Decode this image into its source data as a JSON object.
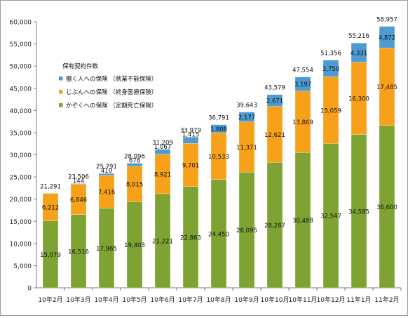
{
  "chart_data": {
    "type": "bar",
    "stacked": true,
    "categories": [
      "10年2月",
      "10年3月",
      "10年4月",
      "10年5月",
      "10年6月",
      "10年7月",
      "10年8月",
      "10年9月",
      "10年10月",
      "10年11月",
      "10年12月",
      "11年1月",
      "11年2月"
    ],
    "legend_title": "保有契約件数",
    "legend_placement": "top-left",
    "series": [
      {
        "name": "かぞくへの保険 （定期死亡保険）",
        "color": "#7fa333",
        "values": [
          15079,
          16516,
          17965,
          19403,
          21221,
          22863,
          24450,
          26095,
          28287,
          30488,
          32547,
          34585,
          36600
        ]
      },
      {
        "name": "じぶんへの保険 （終身医療保険）",
        "color": "#f7a11a",
        "values": [
          6212,
          6846,
          7416,
          8015,
          8921,
          9701,
          10533,
          11371,
          12621,
          13869,
          15059,
          16300,
          17485
        ]
      },
      {
        "name": "働く人への保険 （就業不能保険）",
        "color": "#4d9bd0",
        "values": [
          null,
          144,
          410,
          678,
          1067,
          1415,
          1808,
          2177,
          2671,
          3197,
          3750,
          4331,
          4872
        ]
      }
    ],
    "totals": [
      21291,
      23506,
      25791,
      28096,
      31209,
      33979,
      36791,
      39643,
      43579,
      47554,
      51356,
      55216,
      58957
    ],
    "ylim": [
      0,
      60000
    ],
    "yticks": [
      0,
      5000,
      10000,
      15000,
      20000,
      25000,
      30000,
      35000,
      40000,
      45000,
      50000,
      55000,
      60000
    ],
    "grid": false
  }
}
